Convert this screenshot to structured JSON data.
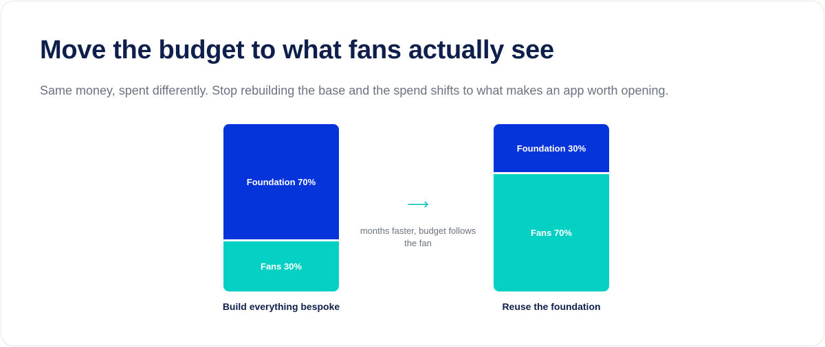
{
  "title": "Move the budget to what fans actually see",
  "subtitle": "Same money, spent differently. Stop rebuilding the base and the spend shifts to what makes an app worth opening.",
  "transition": {
    "arrow_icon": "right-arrow-icon",
    "note": "months faster, budget follows the fan"
  },
  "colors": {
    "foundation": "#0434da",
    "fans": "#04d1c4",
    "title": "#0f1f4b",
    "muted": "#6b7280",
    "arrow": "#1ec8c0"
  },
  "chart_data": {
    "type": "bar",
    "stacked": true,
    "normalized": true,
    "categories": [
      "Build everything bespoke",
      "Reuse the foundation"
    ],
    "series": [
      {
        "name": "Foundation",
        "values": [
          70,
          30
        ],
        "labels": [
          "Foundation 70%",
          "Foundation 30%"
        ]
      },
      {
        "name": "Fans",
        "values": [
          30,
          70
        ],
        "labels": [
          "Fans 30%",
          "Fans 70%"
        ]
      }
    ],
    "ylim": [
      0,
      100
    ],
    "grid": false,
    "legend": "none"
  }
}
